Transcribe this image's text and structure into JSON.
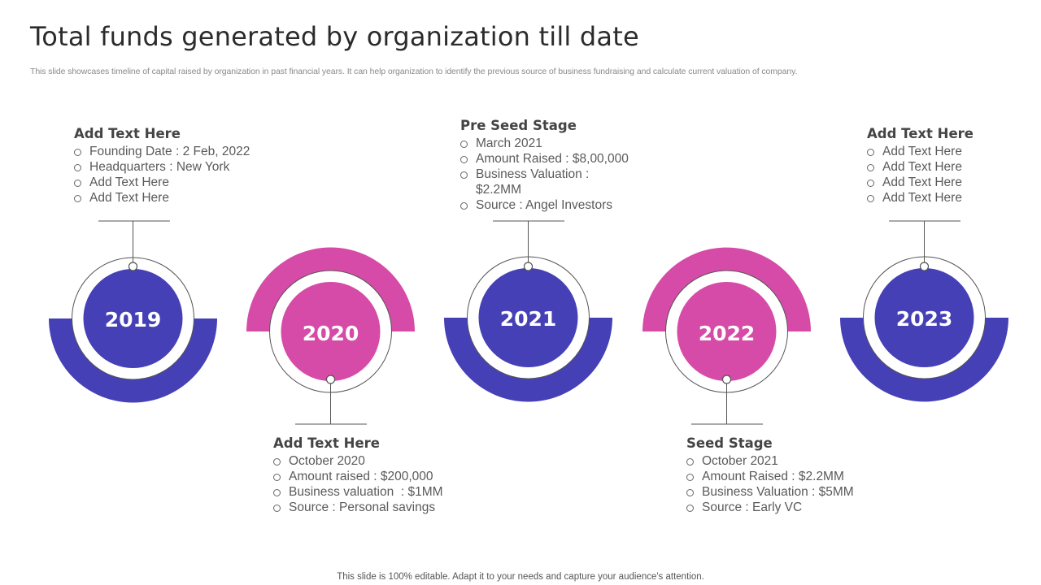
{
  "title": "Total funds generated by organization till date",
  "subtitle": "This slide showcases timeline of capital raised by organization in past financial years. It can help organization to identify the previous source of business fundraising and calculate current valuation of company.",
  "footer": "This slide is 100% editable. Adapt it to your needs and capture your audience's attention.",
  "colors": {
    "blue": "#4540b5",
    "pink": "#d64ba7",
    "line": "#555555"
  },
  "milestones": [
    {
      "year": "2019",
      "heading": "Add Text Here",
      "items": [
        "Founding Date : 2 Feb, 2022",
        "Headquarters : New York",
        "Add Text Here",
        "Add Text Here"
      ]
    },
    {
      "year": "2020",
      "heading": "Add Text Here",
      "items": [
        "October 2020",
        "Amount raised : $200,000",
        "Business valuation  : $1MM",
        "Source : Personal savings"
      ]
    },
    {
      "year": "2021",
      "heading": "Pre Seed Stage",
      "items": [
        "March 2021",
        "Amount Raised : $8,00,000",
        "Business Valuation :",
        "$2.2MM",
        "Source : Angel Investors"
      ]
    },
    {
      "year": "2022",
      "heading": "Seed Stage",
      "items": [
        "October 2021",
        "Amount Raised : $2.2MM",
        "Business Valuation : $5MM",
        "Source : Early VC"
      ]
    },
    {
      "year": "2023",
      "heading": "Add Text Here",
      "items": [
        "Add Text Here",
        "Add Text Here",
        "Add Text Here",
        "Add Text Here"
      ]
    }
  ]
}
